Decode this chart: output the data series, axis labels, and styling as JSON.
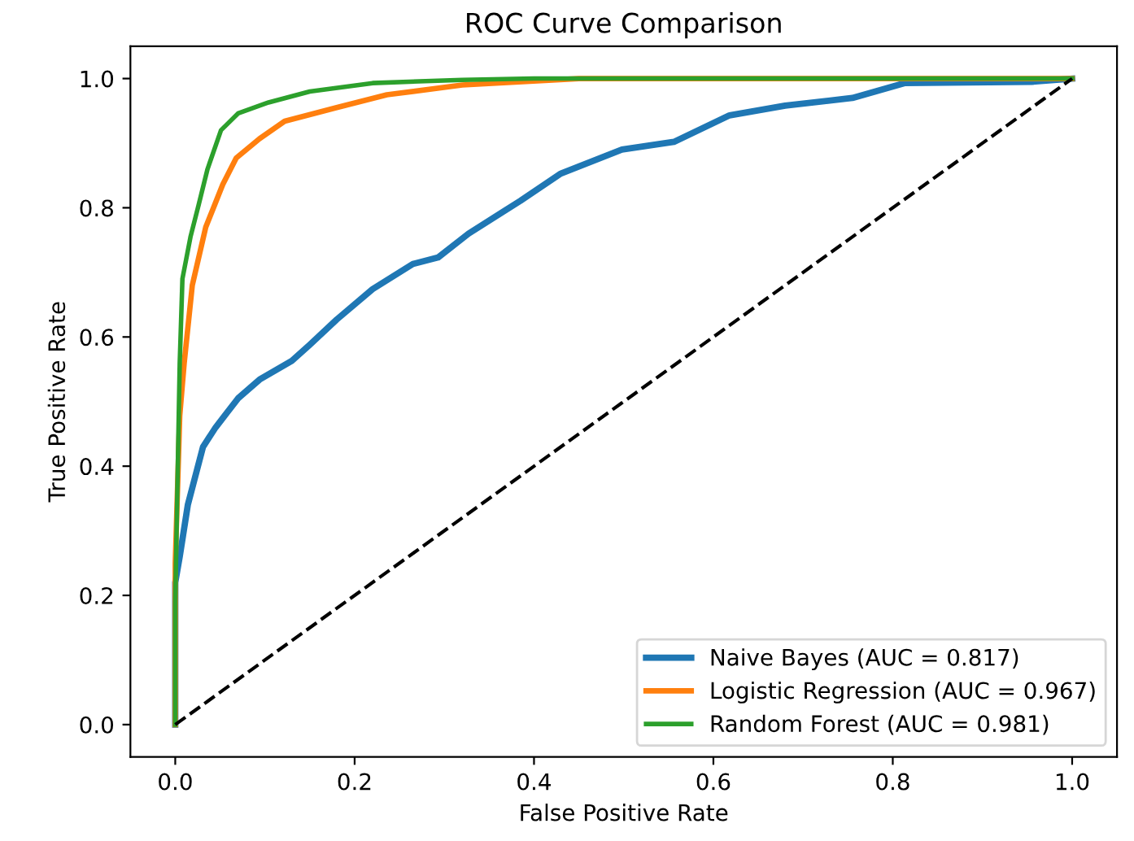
{
  "chart_data": {
    "type": "line",
    "title": "ROC Curve Comparison",
    "xlabel": "False Positive Rate",
    "ylabel": "True Positive Rate",
    "xlim": [
      -0.05,
      1.05
    ],
    "ylim": [
      -0.05,
      1.05
    ],
    "xticks": [
      {
        "value": 0,
        "label": "0.0"
      },
      0.2,
      0.4,
      0.6,
      0.8,
      {
        "value": 1,
        "label": "1.0"
      }
    ],
    "yticks": [
      {
        "value": 0,
        "label": "0.0"
      },
      0.2,
      0.4,
      0.6,
      0.8,
      {
        "value": 1,
        "label": "1.0"
      }
    ],
    "grid": false,
    "legend": "bottom right",
    "marker": "none",
    "series": [
      {
        "name": "Naive Bayes (AUC = 0.817)",
        "color": "#1f77b4",
        "x": [
          0,
          0,
          0.005,
          0.014,
          0.031,
          0.045,
          0.07,
          0.094,
          0.13,
          0.15,
          0.18,
          0.22,
          0.265,
          0.293,
          0.327,
          0.385,
          0.43,
          0.498,
          0.556,
          0.618,
          0.68,
          0.755,
          0.813,
          0.955,
          1
        ],
        "values": [
          0,
          0.22,
          0.26,
          0.34,
          0.43,
          0.46,
          0.505,
          0.534,
          0.563,
          0.588,
          0.627,
          0.674,
          0.713,
          0.723,
          0.76,
          0.811,
          0.853,
          0.89,
          0.902,
          0.943,
          0.958,
          0.97,
          0.993,
          0.995,
          1
        ]
      },
      {
        "name": "Logistic Regression (AUC = 0.967)",
        "color": "#ff7f0e",
        "x": [
          0,
          0,
          0.005,
          0.01,
          0.019,
          0.034,
          0.053,
          0.068,
          0.094,
          0.122,
          0.18,
          0.236,
          0.32,
          0.45,
          1
        ],
        "values": [
          0,
          0.25,
          0.478,
          0.56,
          0.68,
          0.77,
          0.836,
          0.877,
          0.907,
          0.934,
          0.955,
          0.975,
          0.99,
          1,
          1
        ]
      },
      {
        "name": "Random Forest (AUC = 0.981)",
        "color": "#2ca02c",
        "x": [
          0,
          0,
          0.005,
          0.008,
          0.017,
          0.026,
          0.036,
          0.051,
          0.07,
          0.104,
          0.15,
          0.22,
          0.32,
          0.4,
          1
        ],
        "values": [
          0,
          0.19,
          0.56,
          0.69,
          0.755,
          0.804,
          0.86,
          0.92,
          0.946,
          0.963,
          0.98,
          0.993,
          0.998,
          1,
          1
        ]
      },
      {
        "color": "#000000",
        "line_style": "dashed",
        "x": [
          0,
          1
        ],
        "values": [
          0,
          1
        ]
      }
    ]
  }
}
